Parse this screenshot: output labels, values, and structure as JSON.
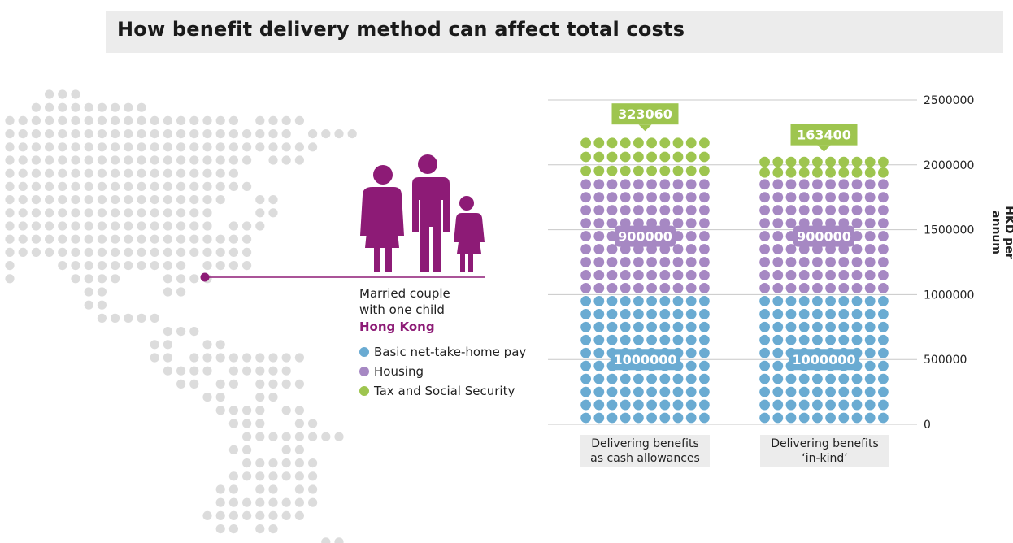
{
  "title": "How benefit delivery method can affect total costs",
  "info": {
    "line1": "Married couple",
    "line2": "with one child",
    "place": "Hong Kong"
  },
  "legend": [
    {
      "label": "Basic net-take-home pay",
      "color": "#6aabd2"
    },
    {
      "label": "Housing",
      "color": "#a688c3"
    },
    {
      "label": "Tax and Social Security",
      "color": "#9ec54f"
    }
  ],
  "colors": {
    "accent": "#8d1b76",
    "map_dot": "#dcdcdc",
    "label_box": "#ececec"
  },
  "icons": [
    "family-icon",
    "world-map-icon"
  ],
  "chart_data": {
    "type": "bar",
    "stacked": true,
    "categories": [
      [
        "Delivering benefits",
        "as cash allowances"
      ],
      [
        "Delivering benefits",
        "‘in-kind’"
      ]
    ],
    "series": [
      {
        "name": "Basic net-take-home pay",
        "values": [
          1000000,
          1000000
        ],
        "labels": [
          "1000000",
          "1000000"
        ]
      },
      {
        "name": "Housing",
        "values": [
          900000,
          900000
        ],
        "labels": [
          "900000",
          "900000"
        ]
      },
      {
        "name": "Tax and Social Security",
        "values": [
          323060,
          163400
        ],
        "labels": [
          "323060",
          "163400"
        ]
      }
    ],
    "ylabel": "HKD per annum",
    "ylim": [
      0,
      2500000
    ],
    "yticks": [
      "0",
      "500000",
      "1000000",
      "1500000",
      "2000000",
      "2500000"
    ],
    "ytick_values": [
      0,
      500000,
      1000000,
      1500000,
      2000000,
      2500000
    ],
    "grid": true
  }
}
